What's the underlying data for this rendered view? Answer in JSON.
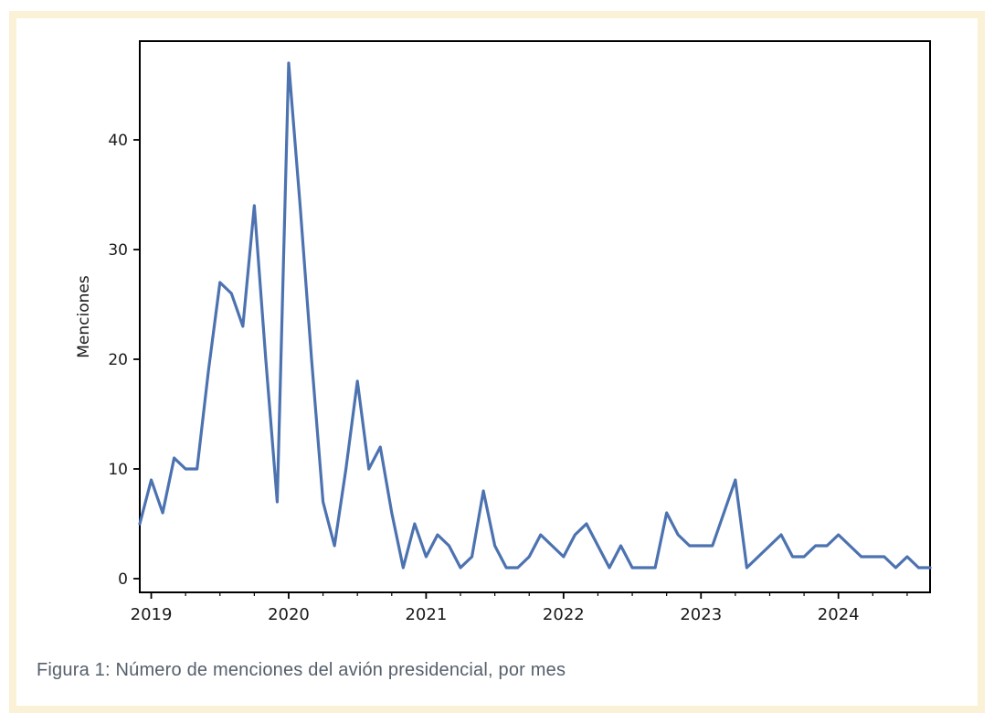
{
  "figure": {
    "caption": "Figura 1: Número de menciones del avión presidencial, por mes",
    "frame_border_color": "#fbf1d6",
    "background_color": "#ffffff"
  },
  "chart_data": {
    "type": "line",
    "title": "",
    "xlabel": "",
    "ylabel": "Menciones",
    "line_color": "#4C72B0",
    "axis_color": "#000000",
    "tick_label_color": "#1a1a1a",
    "grid": "off",
    "legend": "none",
    "ylim": [
      -1.25,
      49
    ],
    "yticks": [
      0,
      10,
      20,
      30,
      40
    ],
    "xticks_major": [
      2019,
      2020,
      2021,
      2022,
      2023,
      2024
    ],
    "xticks_minor_interval_months": 3,
    "x_frequency": "monthly",
    "x": [
      "2018-12",
      "2019-01",
      "2019-02",
      "2019-03",
      "2019-04",
      "2019-05",
      "2019-06",
      "2019-07",
      "2019-08",
      "2019-09",
      "2019-10",
      "2019-11",
      "2019-12",
      "2020-01",
      "2020-02",
      "2020-03",
      "2020-04",
      "2020-05",
      "2020-06",
      "2020-07",
      "2020-08",
      "2020-09",
      "2020-10",
      "2020-11",
      "2020-12",
      "2021-01",
      "2021-02",
      "2021-03",
      "2021-04",
      "2021-05",
      "2021-06",
      "2021-07",
      "2021-08",
      "2021-09",
      "2021-10",
      "2021-11",
      "2021-12",
      "2022-01",
      "2022-02",
      "2022-03",
      "2022-04",
      "2022-05",
      "2022-06",
      "2022-07",
      "2022-08",
      "2022-09",
      "2022-10",
      "2022-11",
      "2022-12",
      "2023-01",
      "2023-02",
      "2023-03",
      "2023-04",
      "2023-05",
      "2023-06",
      "2023-07",
      "2023-08",
      "2023-09",
      "2023-10",
      "2023-11",
      "2023-12",
      "2024-01",
      "2024-02",
      "2024-03",
      "2024-04",
      "2024-05",
      "2024-06",
      "2024-07",
      "2024-08",
      "2024-09"
    ],
    "values": [
      5,
      9,
      6,
      11,
      10,
      10,
      19,
      27,
      26,
      23,
      34,
      20,
      7,
      47,
      34,
      20,
      7,
      3,
      10,
      18,
      10,
      12,
      6,
      1,
      5,
      2,
      4,
      3,
      1,
      2,
      8,
      3,
      1,
      1,
      2,
      4,
      3,
      2,
      4,
      5,
      3,
      1,
      3,
      1,
      1,
      1,
      6,
      4,
      3,
      3,
      3,
      6,
      9,
      1,
      2,
      3,
      4,
      2,
      2,
      3,
      3,
      4,
      3,
      2,
      2,
      2,
      1,
      2,
      1,
      1
    ]
  }
}
